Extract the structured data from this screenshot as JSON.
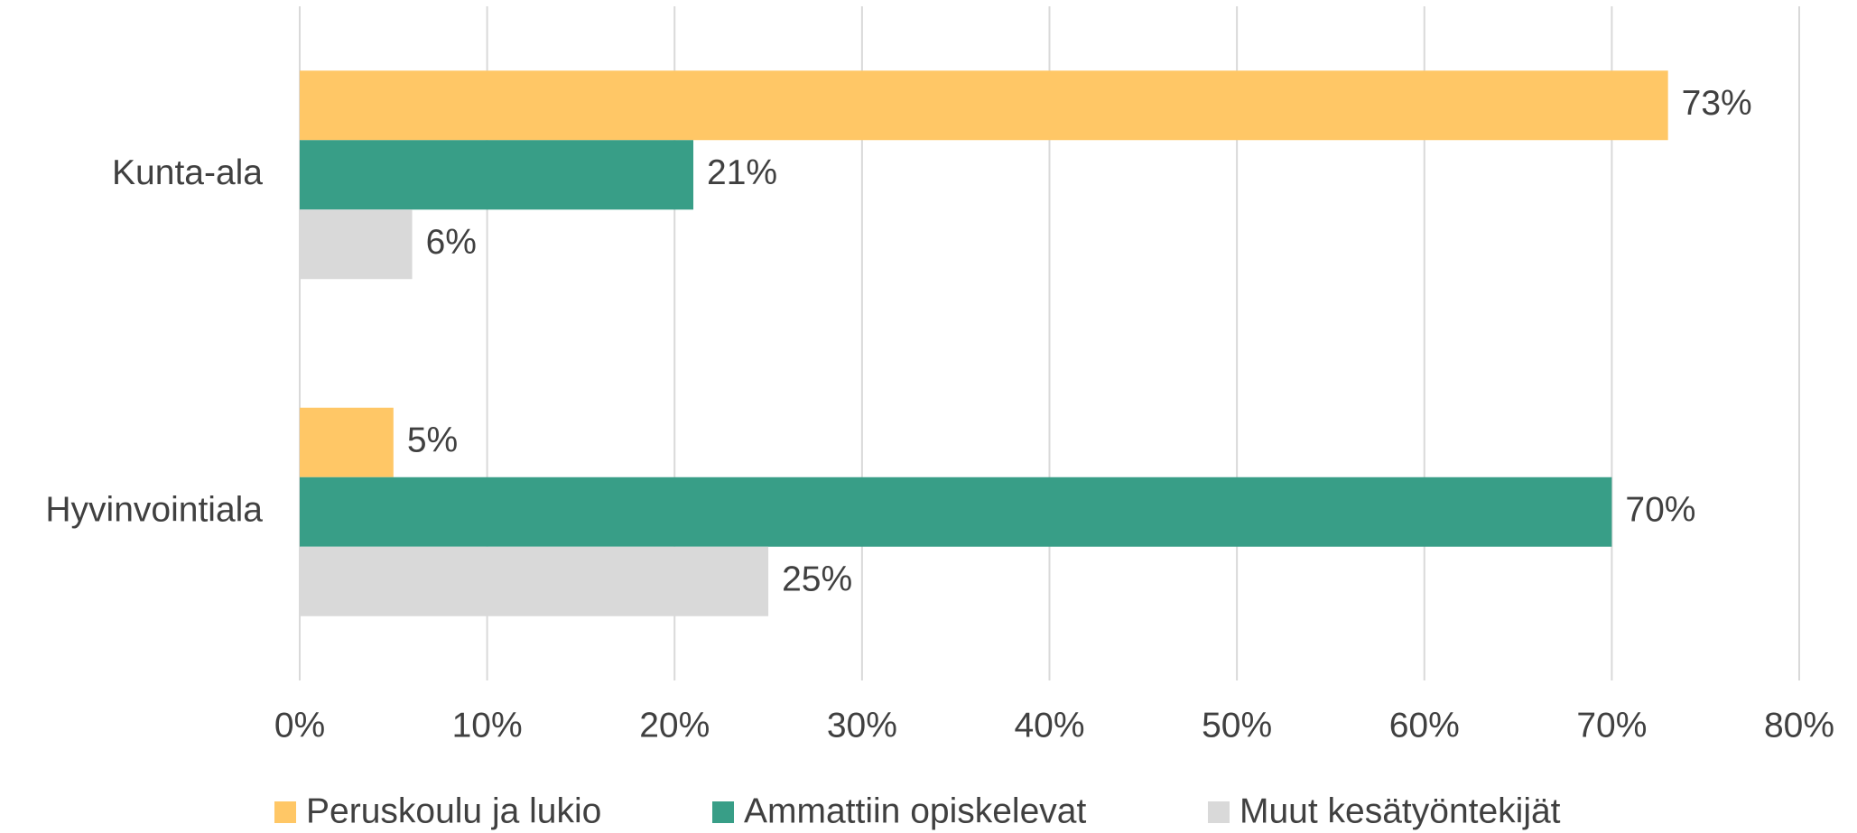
{
  "chart_data": {
    "type": "hbar",
    "categories": [
      "Kunta-ala",
      "Hyvinvointiala"
    ],
    "series": [
      {
        "name": "Peruskoulu ja lukio",
        "color": "#FFC766",
        "values": [
          73,
          5
        ],
        "value_labels": [
          "73%",
          "5%"
        ]
      },
      {
        "name": "Ammattiin opiskelevat",
        "color": "#389E87",
        "values": [
          21,
          70
        ],
        "value_labels": [
          "21%",
          "70%"
        ]
      },
      {
        "name": "Muut kesätyöntekijät",
        "color": "#D9D9D9",
        "values": [
          6,
          25
        ],
        "value_labels": [
          "6%",
          "25%"
        ]
      }
    ],
    "xlim": [
      0,
      80
    ],
    "xticks": [
      {
        "value": 0,
        "label": "0%"
      },
      {
        "value": 10,
        "label": "10%"
      },
      {
        "value": 20,
        "label": "20%"
      },
      {
        "value": 30,
        "label": "30%"
      },
      {
        "value": 40,
        "label": "40%"
      },
      {
        "value": 50,
        "label": "50%"
      },
      {
        "value": 60,
        "label": "60%"
      },
      {
        "value": 70,
        "label": "70%"
      },
      {
        "value": 80,
        "label": "80%"
      }
    ],
    "grid": true,
    "legend": "bottom"
  }
}
